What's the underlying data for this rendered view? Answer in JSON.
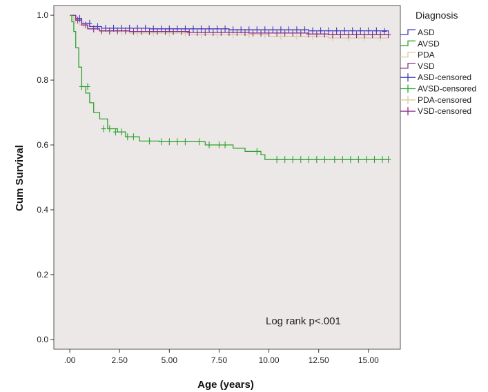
{
  "chart_data": {
    "type": "line",
    "title": "",
    "xlabel": "Age (years)",
    "ylabel": "Cum Survival",
    "xlim": [
      -0.8,
      16.6
    ],
    "ylim": [
      -0.03,
      1.03
    ],
    "x_ticks": [
      0,
      2.5,
      5,
      7.5,
      10,
      12.5,
      15
    ],
    "x_tick_labels": [
      ".00",
      "2.50",
      "5.00",
      "7.50",
      "10.00",
      "12.50",
      "15.00"
    ],
    "y_ticks": [
      0,
      0.2,
      0.4,
      0.6,
      0.8,
      1.0
    ],
    "y_tick_labels": [
      "0.0",
      "0.2",
      "0.4",
      "0.6",
      "0.8",
      "1.0"
    ],
    "grid": false,
    "plot_background": "#ece8e8",
    "legend_title": "Diagnosis",
    "legend_position": "right",
    "legend": [
      {
        "label": "ASD",
        "color": "#3b3bbf",
        "kind": "line"
      },
      {
        "label": "AVSD",
        "color": "#2fa32f",
        "kind": "line"
      },
      {
        "label": "PDA",
        "color": "#d8c89a",
        "kind": "line"
      },
      {
        "label": "VSD",
        "color": "#8a2a8a",
        "kind": "line"
      },
      {
        "label": "ASD-censored",
        "color": "#3b3bbf",
        "kind": "cross"
      },
      {
        "label": "AVSD-censored",
        "color": "#2fa32f",
        "kind": "cross"
      },
      {
        "label": "PDA-censored",
        "color": "#d8c89a",
        "kind": "cross"
      },
      {
        "label": "VSD-censored",
        "color": "#8a2a8a",
        "kind": "cross"
      }
    ],
    "annotation": "Log rank p<.001",
    "series": [
      {
        "name": "PDA",
        "color": "#d8c89a",
        "steps": [
          [
            0,
            1.0
          ],
          [
            0.2,
            0.985
          ],
          [
            0.5,
            0.97
          ],
          [
            0.9,
            0.958
          ],
          [
            1.5,
            0.95
          ],
          [
            3,
            0.945
          ],
          [
            6,
            0.94
          ],
          [
            10,
            0.935
          ],
          [
            13,
            0.93
          ],
          [
            16,
            0.93
          ]
        ],
        "censored": [
          [
            0.3,
            0.985
          ],
          [
            0.7,
            0.97
          ],
          [
            1.2,
            0.958
          ],
          [
            2,
            0.95
          ],
          [
            2.6,
            0.95
          ],
          [
            3.4,
            0.945
          ],
          [
            4.2,
            0.945
          ],
          [
            5,
            0.945
          ],
          [
            5.8,
            0.945
          ],
          [
            6.6,
            0.94
          ],
          [
            7.4,
            0.94
          ],
          [
            8.2,
            0.94
          ],
          [
            9,
            0.94
          ],
          [
            9.8,
            0.94
          ],
          [
            10.6,
            0.935
          ],
          [
            11.4,
            0.935
          ],
          [
            12.2,
            0.935
          ],
          [
            13.2,
            0.93
          ],
          [
            14,
            0.93
          ],
          [
            14.8,
            0.93
          ],
          [
            15.6,
            0.93
          ]
        ]
      },
      {
        "name": "ASD",
        "color": "#3b3bbf",
        "steps": [
          [
            0,
            1.0
          ],
          [
            0.3,
            0.99
          ],
          [
            0.6,
            0.975
          ],
          [
            1.0,
            0.965
          ],
          [
            1.6,
            0.96
          ],
          [
            4,
            0.958
          ],
          [
            8,
            0.955
          ],
          [
            12,
            0.952
          ],
          [
            16,
            0.95
          ]
        ],
        "censored": [
          [
            0.5,
            0.99
          ],
          [
            1.0,
            0.975
          ],
          [
            1.4,
            0.965
          ],
          [
            1.8,
            0.96
          ],
          [
            2.2,
            0.96
          ],
          [
            2.6,
            0.96
          ],
          [
            3.0,
            0.96
          ],
          [
            3.4,
            0.96
          ],
          [
            3.8,
            0.96
          ],
          [
            4.2,
            0.958
          ],
          [
            4.6,
            0.958
          ],
          [
            5.0,
            0.958
          ],
          [
            5.4,
            0.958
          ],
          [
            5.8,
            0.958
          ],
          [
            6.2,
            0.958
          ],
          [
            6.6,
            0.958
          ],
          [
            7.0,
            0.958
          ],
          [
            7.4,
            0.958
          ],
          [
            7.8,
            0.958
          ],
          [
            8.2,
            0.955
          ],
          [
            8.6,
            0.955
          ],
          [
            9.0,
            0.955
          ],
          [
            9.4,
            0.955
          ],
          [
            9.8,
            0.955
          ],
          [
            10.2,
            0.955
          ],
          [
            10.6,
            0.955
          ],
          [
            11.0,
            0.955
          ],
          [
            11.4,
            0.955
          ],
          [
            11.8,
            0.955
          ],
          [
            12.2,
            0.952
          ],
          [
            12.6,
            0.952
          ],
          [
            13.0,
            0.952
          ],
          [
            13.4,
            0.952
          ],
          [
            13.8,
            0.952
          ],
          [
            14.2,
            0.952
          ],
          [
            14.6,
            0.952
          ],
          [
            15.0,
            0.952
          ],
          [
            15.4,
            0.952
          ],
          [
            15.8,
            0.95
          ]
        ]
      },
      {
        "name": "VSD",
        "color": "#8a2a8a",
        "steps": [
          [
            0,
            1.0
          ],
          [
            0.3,
            0.985
          ],
          [
            0.6,
            0.97
          ],
          [
            0.9,
            0.958
          ],
          [
            1.5,
            0.952
          ],
          [
            3,
            0.95
          ],
          [
            6,
            0.947
          ],
          [
            9,
            0.945
          ],
          [
            12,
            0.942
          ],
          [
            13,
            0.94
          ],
          [
            16,
            0.94
          ]
        ],
        "censored": [
          [
            0.4,
            0.985
          ],
          [
            0.8,
            0.97
          ],
          [
            1.2,
            0.958
          ],
          [
            1.6,
            0.952
          ],
          [
            2.0,
            0.952
          ],
          [
            2.4,
            0.952
          ],
          [
            2.8,
            0.952
          ],
          [
            3.2,
            0.95
          ],
          [
            3.6,
            0.95
          ],
          [
            4.0,
            0.95
          ],
          [
            4.4,
            0.95
          ],
          [
            4.8,
            0.95
          ],
          [
            5.2,
            0.95
          ],
          [
            5.6,
            0.95
          ],
          [
            6.0,
            0.947
          ],
          [
            6.4,
            0.947
          ],
          [
            6.8,
            0.947
          ],
          [
            7.2,
            0.947
          ],
          [
            7.6,
            0.947
          ],
          [
            8.0,
            0.947
          ],
          [
            8.4,
            0.947
          ],
          [
            8.8,
            0.947
          ],
          [
            9.2,
            0.945
          ],
          [
            9.6,
            0.945
          ],
          [
            10.0,
            0.945
          ],
          [
            10.4,
            0.945
          ],
          [
            10.8,
            0.945
          ],
          [
            11.2,
            0.945
          ],
          [
            11.6,
            0.945
          ],
          [
            12.0,
            0.942
          ],
          [
            12.4,
            0.942
          ],
          [
            12.8,
            0.942
          ],
          [
            13.2,
            0.94
          ],
          [
            13.6,
            0.94
          ],
          [
            14.0,
            0.94
          ],
          [
            14.4,
            0.94
          ],
          [
            14.8,
            0.94
          ],
          [
            15.2,
            0.94
          ],
          [
            15.6,
            0.94
          ],
          [
            16.0,
            0.94
          ]
        ]
      },
      {
        "name": "AVSD",
        "color": "#2fa32f",
        "steps": [
          [
            0,
            1.0
          ],
          [
            0.1,
            0.98
          ],
          [
            0.2,
            0.95
          ],
          [
            0.3,
            0.9
          ],
          [
            0.45,
            0.84
          ],
          [
            0.6,
            0.78
          ],
          [
            0.8,
            0.76
          ],
          [
            1.0,
            0.73
          ],
          [
            1.2,
            0.7
          ],
          [
            1.5,
            0.68
          ],
          [
            1.9,
            0.65
          ],
          [
            2.4,
            0.64
          ],
          [
            2.8,
            0.625
          ],
          [
            3.5,
            0.612
          ],
          [
            4.5,
            0.61
          ],
          [
            6.8,
            0.6
          ],
          [
            8.2,
            0.59
          ],
          [
            8.8,
            0.58
          ],
          [
            9.6,
            0.57
          ],
          [
            9.8,
            0.555
          ],
          [
            16,
            0.555
          ]
        ],
        "censored": [
          [
            0.6,
            0.78
          ],
          [
            0.9,
            0.78
          ],
          [
            1.7,
            0.65
          ],
          [
            2.0,
            0.65
          ],
          [
            2.3,
            0.64
          ],
          [
            2.6,
            0.64
          ],
          [
            2.9,
            0.625
          ],
          [
            3.2,
            0.625
          ],
          [
            4.0,
            0.612
          ],
          [
            4.6,
            0.61
          ],
          [
            5.0,
            0.61
          ],
          [
            5.4,
            0.61
          ],
          [
            5.8,
            0.61
          ],
          [
            6.5,
            0.61
          ],
          [
            7.0,
            0.6
          ],
          [
            7.5,
            0.6
          ],
          [
            7.8,
            0.6
          ],
          [
            9.4,
            0.58
          ],
          [
            10.4,
            0.555
          ],
          [
            10.8,
            0.555
          ],
          [
            11.2,
            0.555
          ],
          [
            11.6,
            0.555
          ],
          [
            12.0,
            0.555
          ],
          [
            12.4,
            0.555
          ],
          [
            12.8,
            0.555
          ],
          [
            13.3,
            0.555
          ],
          [
            13.7,
            0.555
          ],
          [
            14.1,
            0.555
          ],
          [
            14.5,
            0.555
          ],
          [
            14.9,
            0.555
          ],
          [
            15.3,
            0.555
          ],
          [
            15.7,
            0.555
          ],
          [
            16.0,
            0.555
          ]
        ]
      }
    ]
  }
}
